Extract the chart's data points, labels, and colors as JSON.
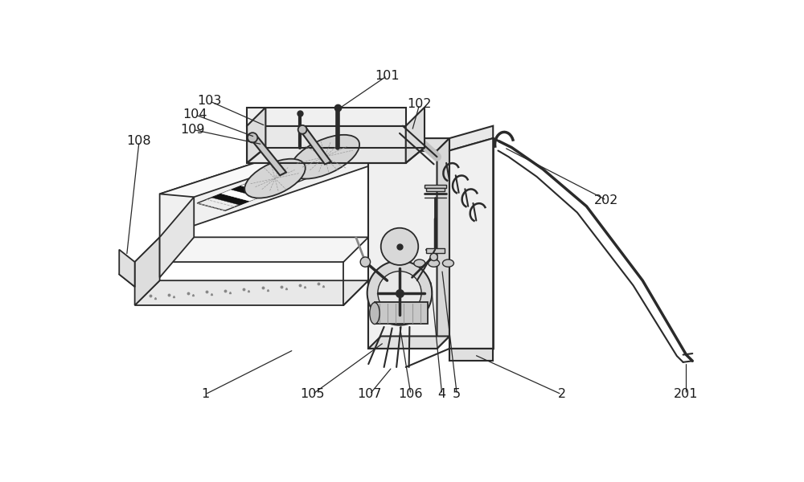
{
  "bg_color": "#ffffff",
  "line_color": "#2a2a2a",
  "label_color": "#1a1a1a",
  "fig_width": 10,
  "fig_height": 6,
  "font_size": 11.5
}
